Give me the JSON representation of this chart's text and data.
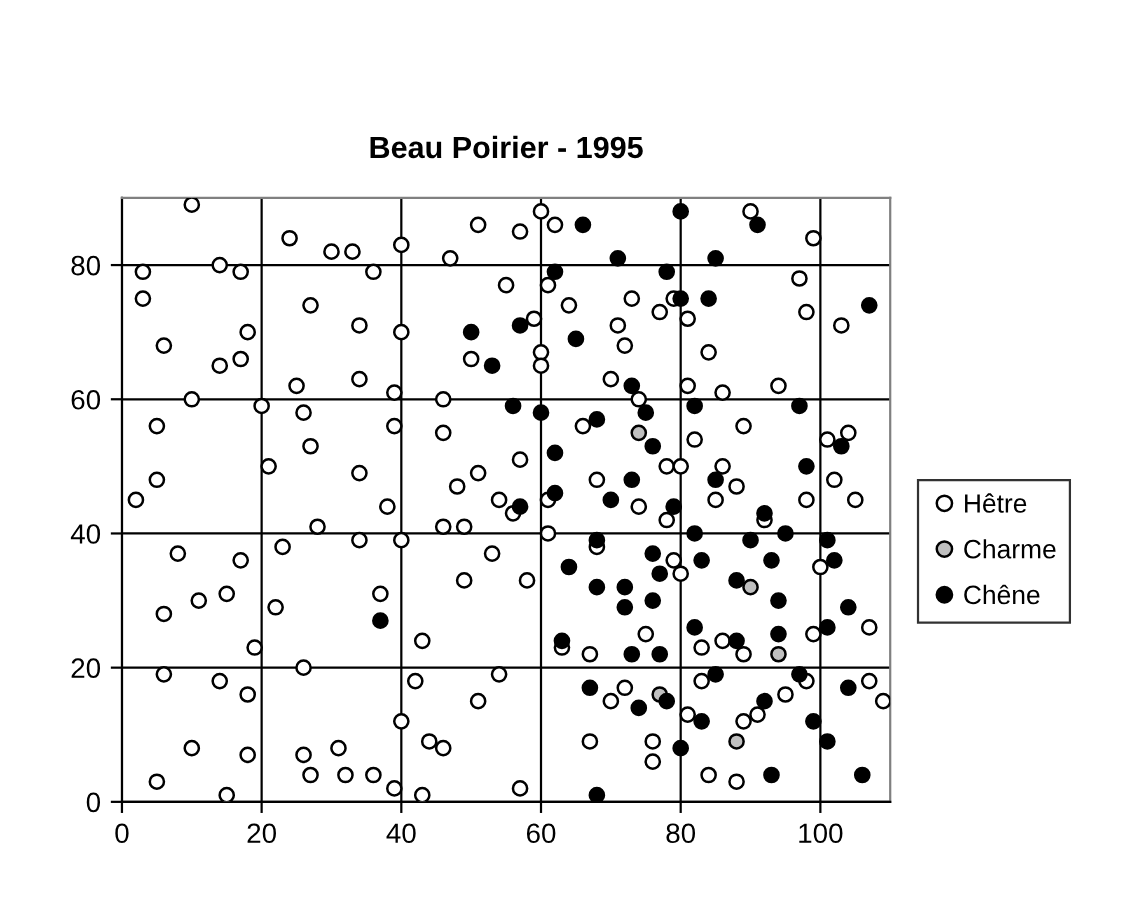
{
  "chart_data": {
    "type": "scatter",
    "title": "Beau Poirier - 1995",
    "xlim": [
      0,
      110
    ],
    "ylim": [
      0,
      90
    ],
    "xticks": [
      0,
      20,
      40,
      60,
      80,
      100
    ],
    "yticks": [
      0,
      20,
      40,
      60,
      80
    ],
    "grid": true,
    "legend": "right",
    "marker": "circle",
    "series": [
      {
        "name": "Hêtre",
        "color": "#ffffff",
        "x": [
          10,
          3,
          3,
          14,
          17,
          24,
          30,
          33,
          36,
          40,
          47,
          51,
          27,
          34,
          40,
          18,
          6,
          14,
          17,
          50,
          10,
          20,
          25,
          26,
          34,
          39,
          46,
          5,
          27,
          39,
          46,
          21,
          34,
          48,
          51,
          5,
          2,
          38,
          54,
          8,
          17,
          23,
          28,
          34,
          40,
          46,
          49,
          53,
          49,
          6,
          11,
          15,
          22,
          37,
          19,
          43,
          6,
          14,
          18,
          26,
          42,
          51,
          54,
          40,
          10,
          18,
          26,
          27,
          31,
          32,
          36,
          44,
          46,
          5,
          15,
          39,
          43,
          60,
          57,
          62,
          90,
          99,
          55,
          61,
          97,
          73,
          64,
          79,
          77,
          81,
          98,
          103,
          59,
          71,
          72,
          60,
          60,
          84,
          70,
          74,
          81,
          86,
          94,
          66,
          82,
          89,
          101,
          104,
          57,
          68,
          78,
          80,
          86,
          88,
          102,
          105,
          61,
          85,
          98,
          74,
          56,
          78,
          92,
          61,
          58,
          68,
          79,
          80,
          100,
          63,
          67,
          75,
          83,
          86,
          89,
          99,
          107,
          70,
          72,
          81,
          83,
          89,
          91,
          95,
          98,
          107,
          109,
          67,
          76,
          76,
          84,
          88,
          57
        ],
        "values": [
          89,
          79,
          75,
          80,
          79,
          84,
          82,
          82,
          79,
          83,
          81,
          86,
          74,
          71,
          70,
          70,
          68,
          65,
          66,
          66,
          60,
          59,
          62,
          58,
          63,
          61,
          60,
          56,
          53,
          56,
          55,
          50,
          49,
          47,
          49,
          48,
          45,
          44,
          45,
          37,
          36,
          38,
          41,
          39,
          39,
          41,
          41,
          37,
          33,
          28,
          30,
          31,
          29,
          31,
          23,
          24,
          19,
          18,
          16,
          20,
          18,
          15,
          19,
          12,
          8,
          7,
          7,
          4,
          8,
          4,
          4,
          9,
          8,
          3,
          1,
          2,
          1,
          88,
          85,
          86,
          88,
          84,
          77,
          77,
          78,
          75,
          74,
          75,
          73,
          72,
          73,
          71,
          72,
          71,
          68,
          67,
          65,
          67,
          63,
          60,
          62,
          61,
          62,
          56,
          54,
          56,
          54,
          55,
          51,
          48,
          50,
          50,
          50,
          47,
          48,
          45,
          45,
          45,
          45,
          44,
          43,
          42,
          42,
          40,
          33,
          38,
          36,
          34,
          35,
          23,
          22,
          25,
          23,
          24,
          22,
          25,
          26,
          15,
          17,
          13,
          18,
          12,
          13,
          16,
          18,
          18,
          15,
          9,
          9,
          6,
          4,
          3,
          2
        ]
      },
      {
        "name": "Charme",
        "color": "#c0c0c0",
        "x": [
          74,
          90,
          94,
          77,
          88
        ],
        "values": [
          55,
          32,
          22,
          16,
          9
        ]
      },
      {
        "name": "Chêne",
        "color": "#000000",
        "x": [
          50,
          53,
          37,
          66,
          80,
          91,
          71,
          78,
          85,
          62,
          80,
          84,
          107,
          57,
          65,
          73,
          75,
          82,
          97,
          56,
          60,
          68,
          76,
          103,
          62,
          73,
          85,
          98,
          62,
          70,
          57,
          79,
          92,
          95,
          68,
          64,
          68,
          72,
          72,
          76,
          77,
          76,
          82,
          83,
          90,
          93,
          88,
          94,
          101,
          102,
          104,
          63,
          73,
          77,
          82,
          88,
          94,
          101,
          67,
          74,
          78,
          85,
          83,
          92,
          97,
          104,
          99,
          80,
          101,
          93,
          106,
          68
        ],
        "values": [
          70,
          65,
          27,
          86,
          88,
          86,
          81,
          79,
          81,
          79,
          75,
          75,
          74,
          71,
          69,
          62,
          58,
          59,
          59,
          59,
          58,
          57,
          53,
          53,
          52,
          48,
          48,
          50,
          46,
          45,
          44,
          44,
          43,
          40,
          39,
          35,
          32,
          32,
          29,
          37,
          34,
          30,
          40,
          36,
          39,
          36,
          33,
          30,
          39,
          36,
          29,
          24,
          22,
          22,
          26,
          24,
          25,
          26,
          17,
          14,
          15,
          19,
          12,
          15,
          19,
          17,
          12,
          8,
          9,
          4,
          4,
          1
        ]
      }
    ]
  }
}
